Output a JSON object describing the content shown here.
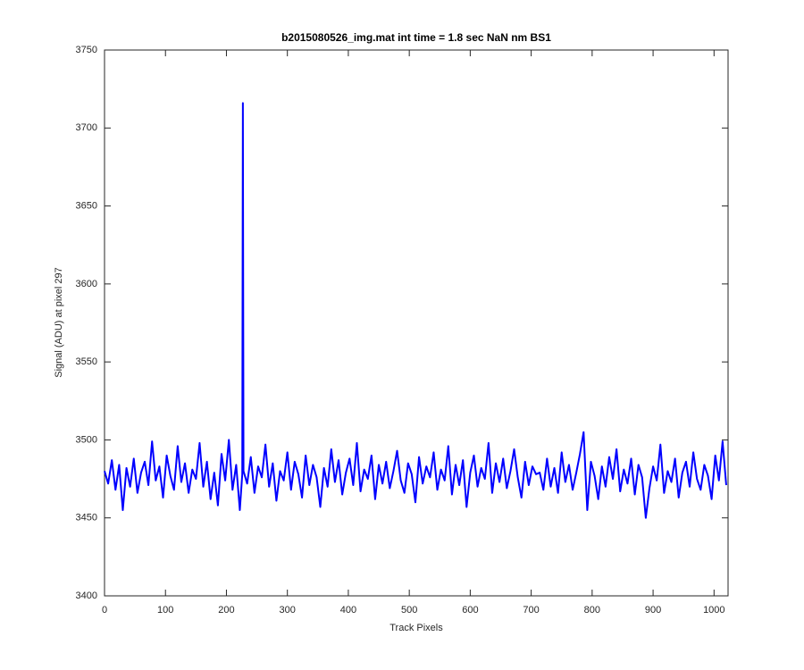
{
  "chart_data": {
    "type": "line",
    "title": "b2015080526_img.mat int time = 1.8 sec  NaN nm BS1",
    "xlabel": "Track Pixels",
    "ylabel": "Signal (ADU) at pixel 297",
    "x": [
      0,
      6,
      12,
      18,
      24,
      30,
      36,
      42,
      48,
      54,
      60,
      66,
      72,
      78,
      84,
      90,
      96,
      102,
      108,
      114,
      120,
      126,
      132,
      138,
      144,
      150,
      156,
      162,
      168,
      174,
      180,
      186,
      192,
      198,
      204,
      210,
      216,
      222,
      226,
      227,
      228,
      234,
      240,
      246,
      252,
      258,
      264,
      270,
      276,
      282,
      288,
      294,
      300,
      306,
      312,
      318,
      324,
      330,
      336,
      342,
      348,
      354,
      360,
      366,
      372,
      378,
      384,
      390,
      396,
      402,
      408,
      414,
      420,
      426,
      432,
      438,
      444,
      450,
      456,
      462,
      468,
      474,
      480,
      486,
      492,
      498,
      504,
      510,
      516,
      522,
      528,
      534,
      540,
      546,
      552,
      558,
      564,
      570,
      576,
      582,
      588,
      594,
      600,
      606,
      612,
      618,
      624,
      630,
      636,
      642,
      648,
      654,
      660,
      666,
      672,
      678,
      684,
      690,
      696,
      702,
      708,
      714,
      720,
      726,
      732,
      738,
      744,
      750,
      756,
      762,
      768,
      774,
      780,
      786,
      792,
      798,
      804,
      810,
      816,
      822,
      828,
      834,
      840,
      846,
      852,
      858,
      864,
      870,
      876,
      882,
      888,
      894,
      900,
      906,
      912,
      918,
      924,
      930,
      936,
      942,
      948,
      954,
      960,
      966,
      972,
      978,
      984,
      990,
      996,
      1002,
      1008,
      1014,
      1020
    ],
    "color": "#0000ff",
    "values": [
      3480,
      3472,
      3487,
      3468,
      3484,
      3455,
      3482,
      3470,
      3488,
      3466,
      3479,
      3486,
      3471,
      3499,
      3474,
      3483,
      3463,
      3490,
      3477,
      3468,
      3496,
      3473,
      3485,
      3466,
      3481,
      3475,
      3498,
      3470,
      3486,
      3462,
      3479,
      3458,
      3491,
      3474,
      3500,
      3468,
      3484,
      3455,
      3478,
      3716,
      3480,
      3472,
      3489,
      3466,
      3483,
      3476,
      3497,
      3470,
      3485,
      3461,
      3480,
      3474,
      3492,
      3468,
      3486,
      3478,
      3463,
      3490,
      3471,
      3484,
      3476,
      3457,
      3482,
      3470,
      3494,
      3473,
      3487,
      3465,
      3479,
      3488,
      3471,
      3498,
      3467,
      3481,
      3475,
      3490,
      3462,
      3484,
      3472,
      3486,
      3469,
      3480,
      3493,
      3474,
      3466,
      3485,
      3478,
      3460,
      3489,
      3472,
      3483,
      3476,
      3492,
      3468,
      3481,
      3474,
      3496,
      3465,
      3484,
      3471,
      3487,
      3457,
      3479,
      3490,
      3470,
      3482,
      3475,
      3498,
      3466,
      3485,
      3473,
      3488,
      3469,
      3480,
      3494,
      3476,
      3463,
      3486,
      3471,
      3483,
      3478,
      3479,
      3468,
      3488,
      3470,
      3482,
      3466,
      3492,
      3473,
      3484,
      3468,
      3479,
      3491,
      3505,
      3455,
      3486,
      3477,
      3462,
      3483,
      3470,
      3489,
      3475,
      3494,
      3467,
      3481,
      3472,
      3488,
      3465,
      3484,
      3476,
      3450,
      3469,
      3483,
      3474,
      3497,
      3466,
      3480,
      3473,
      3488,
      3463,
      3479,
      3486,
      3470,
      3492,
      3475,
      3468,
      3484,
      3477,
      3462,
      3490,
      3474,
      3499,
      3471
    ],
    "xlim": [
      0,
      1023
    ],
    "xticks": [
      0,
      100,
      200,
      300,
      400,
      500,
      600,
      700,
      800,
      900,
      1000
    ],
    "ylim": [
      3400,
      3750
    ],
    "yticks": [
      3400,
      3450,
      3500,
      3550,
      3600,
      3650,
      3700,
      3750
    ]
  }
}
